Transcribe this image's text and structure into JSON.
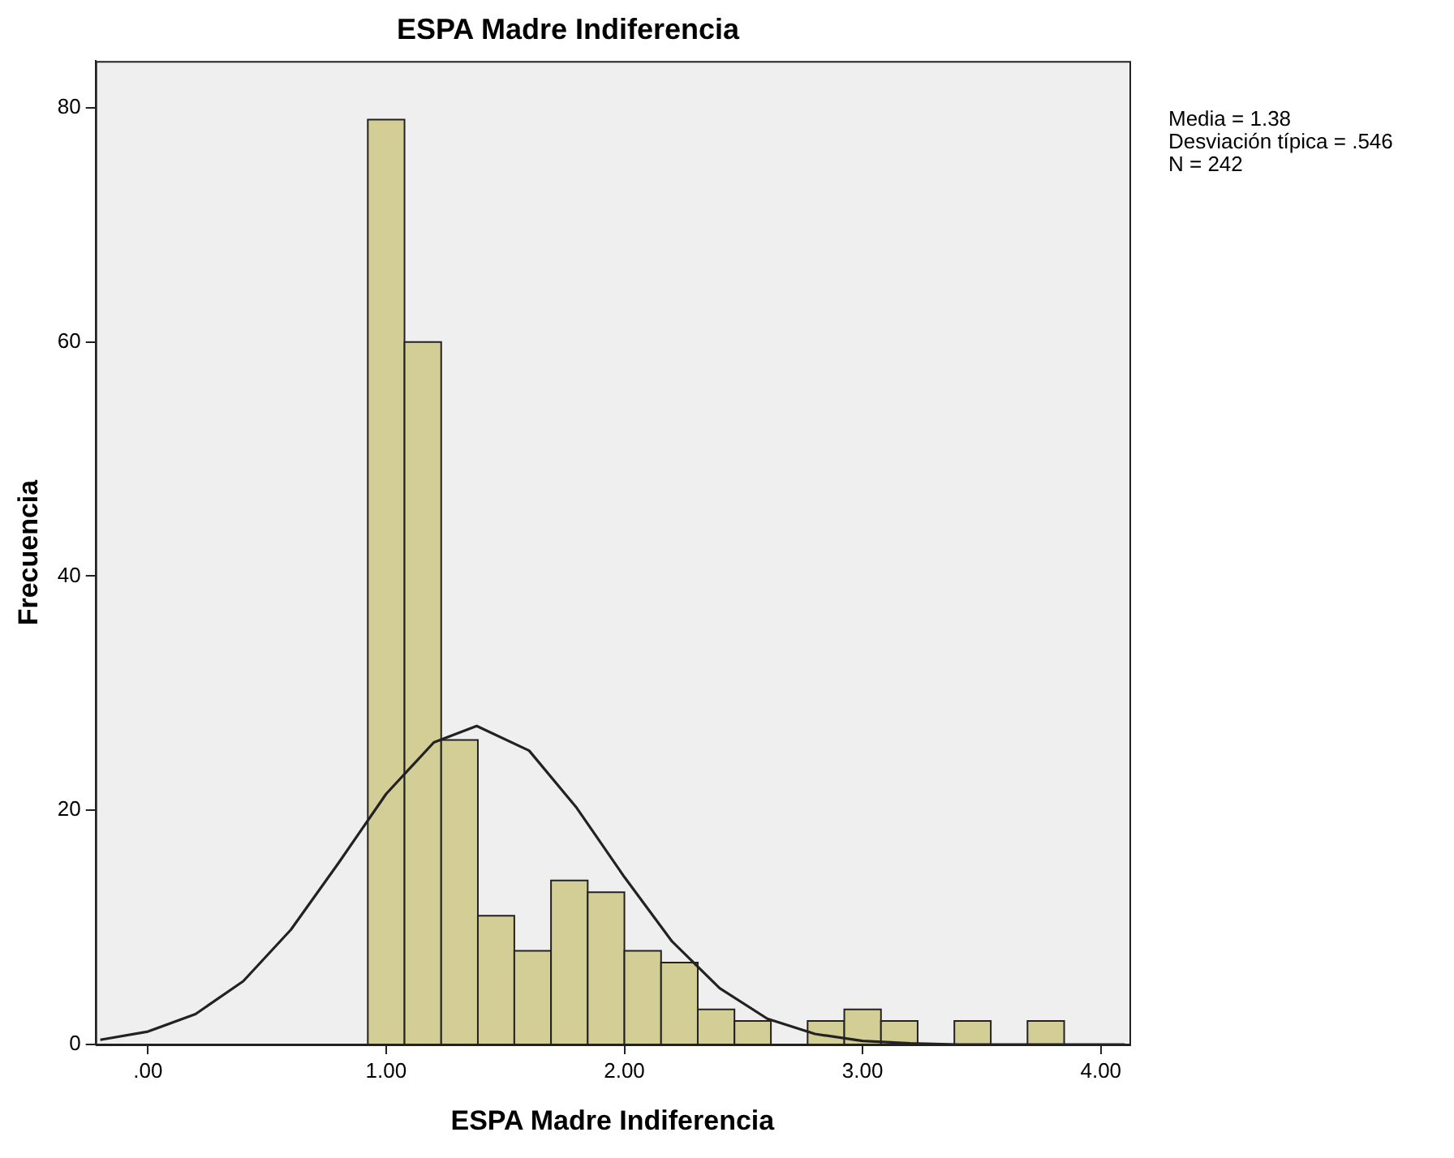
{
  "chart_data": {
    "type": "histogram",
    "title": "ESPA Madre Indiferencia",
    "xlabel": "ESPA Madre Indiferencia",
    "ylabel": "Frecuencia",
    "annotations": [
      "Media = 1.38\nDesviación típica = .546\nN = 242"
    ],
    "bins": [
      0.923,
      1.077,
      1.231,
      1.385,
      1.538,
      1.692,
      1.846,
      2.0,
      2.154,
      2.308,
      2.462,
      2.615,
      2.769,
      2.923,
      3.077,
      3.231,
      3.385,
      3.538,
      3.692,
      3.846
    ],
    "values": [
      79,
      60,
      26,
      11,
      8,
      14,
      13,
      8,
      7,
      3,
      2,
      0,
      2,
      3,
      2,
      0,
      2,
      0,
      2
    ],
    "color": "#d3cd96",
    "series": [
      {
        "type": "line",
        "color": "#222222",
        "x": [
          -0.2,
          0.0,
          0.2,
          0.4,
          0.6,
          0.8,
          1.0,
          1.2,
          1.38,
          1.6,
          1.8,
          2.0,
          2.2,
          2.4,
          2.6,
          2.8,
          3.0,
          3.2,
          3.4,
          3.6,
          3.8,
          4.1
        ],
        "values": [
          0.4,
          1.1,
          2.6,
          5.4,
          9.8,
          15.5,
          21.4,
          25.8,
          27.2,
          25.1,
          20.2,
          14.3,
          8.8,
          4.8,
          2.2,
          0.9,
          0.3,
          0.1,
          0,
          0,
          0,
          0
        ]
      }
    ],
    "xlim": [
      -0.22,
      4.12
    ],
    "xticks": [
      {
        "value": 0,
        "label": ".00"
      },
      {
        "value": 1,
        "label": "1.00"
      },
      {
        "value": 2,
        "label": "2.00"
      },
      {
        "value": 3,
        "label": "3.00"
      },
      {
        "value": 4,
        "label": "4.00"
      }
    ],
    "ylim": [
      0,
      84
    ],
    "yticks": [
      0,
      20,
      40,
      60,
      80
    ],
    "grid": false,
    "legend": false,
    "marker": "none"
  }
}
